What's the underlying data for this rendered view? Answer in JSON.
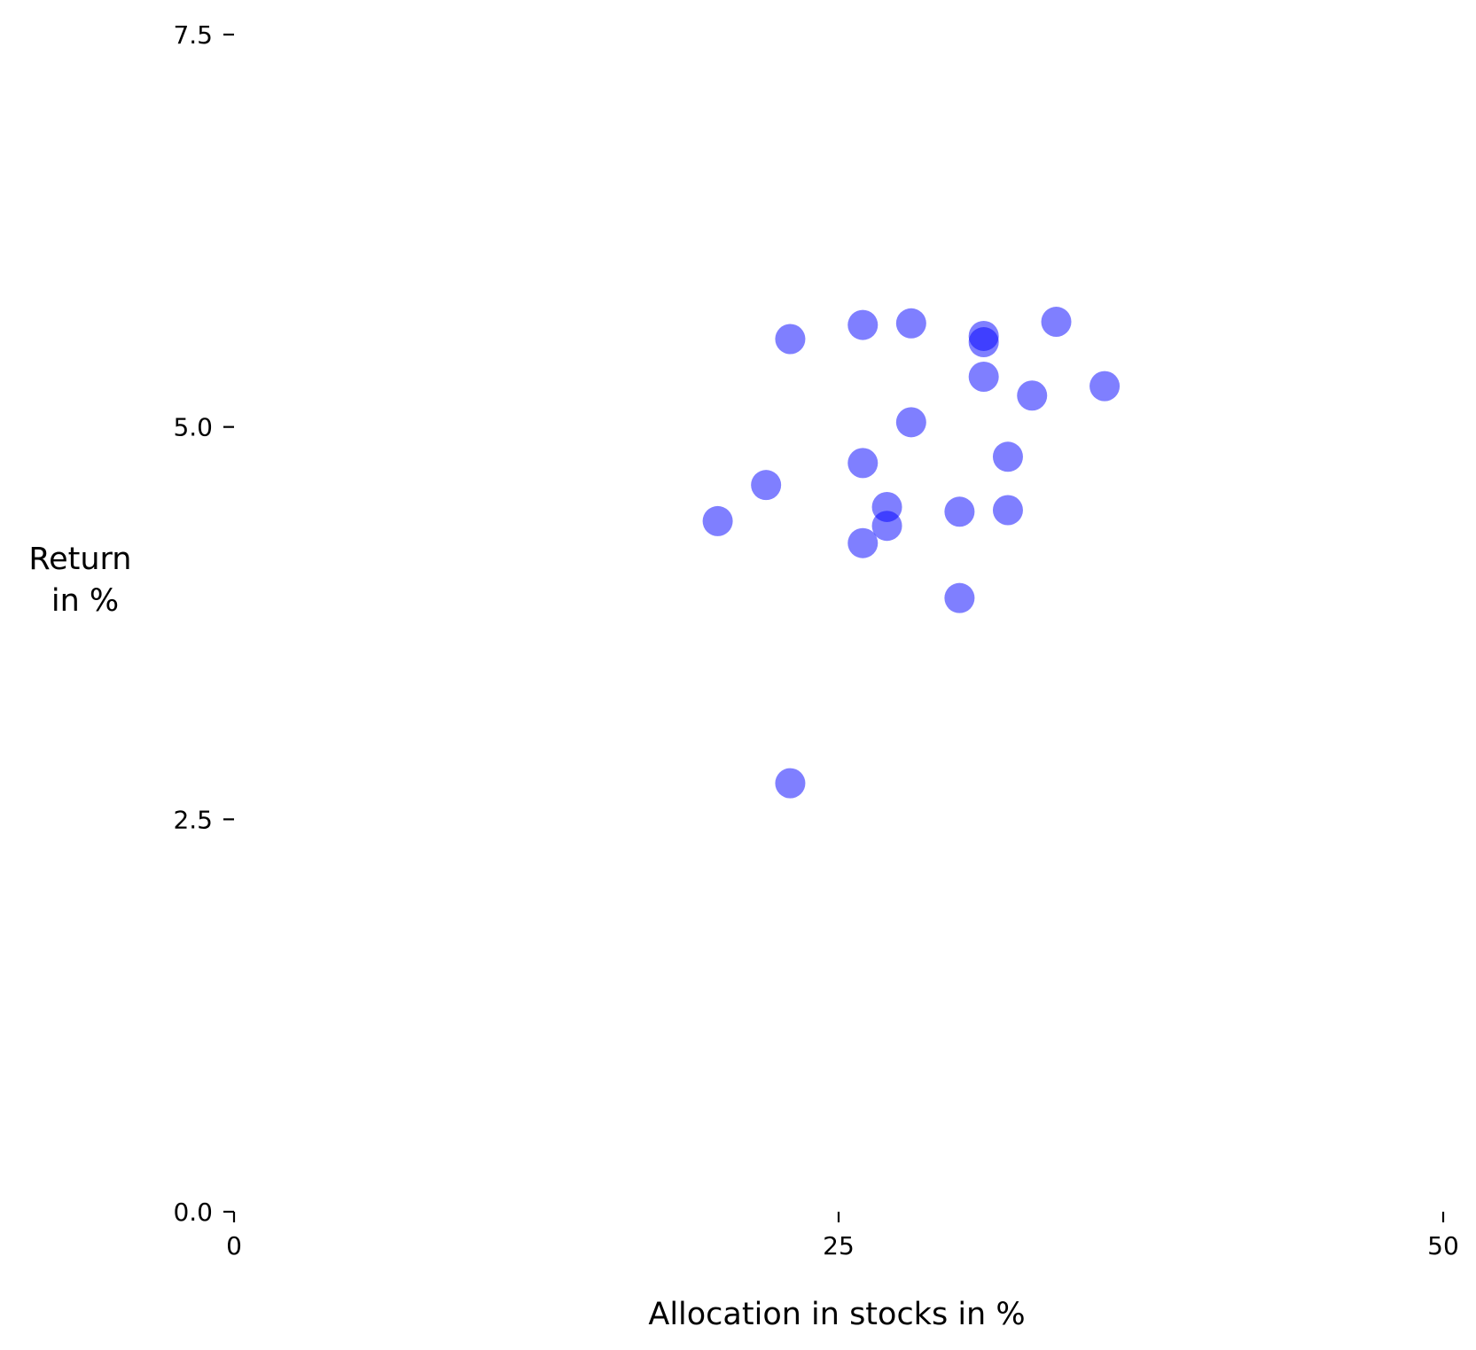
{
  "chart_data": {
    "type": "scatter",
    "title": "",
    "xlabel": "Allocation in stocks in %",
    "ylabel_lines": [
      "Return",
      "in %"
    ],
    "xlim": [
      0,
      50
    ],
    "ylim": [
      0,
      7.5
    ],
    "xticks": [
      0,
      25,
      50
    ],
    "xtick_labels": [
      "0",
      "25",
      "50"
    ],
    "yticks": [
      0,
      2.5,
      5.0,
      7.5
    ],
    "ytick_labels": [
      "0.0",
      "2.5",
      "5.0",
      "7.5"
    ],
    "grid": false,
    "legend": false,
    "point_color": "#0000ff",
    "point_opacity": 0.5,
    "series": [
      {
        "points": [
          {
            "x": 20,
            "y": 4.4
          },
          {
            "x": 22,
            "y": 4.63
          },
          {
            "x": 23,
            "y": 2.73
          },
          {
            "x": 23,
            "y": 5.56
          },
          {
            "x": 26,
            "y": 4.26
          },
          {
            "x": 26,
            "y": 4.77
          },
          {
            "x": 26,
            "y": 5.65
          },
          {
            "x": 27,
            "y": 4.37
          },
          {
            "x": 27,
            "y": 4.49
          },
          {
            "x": 28,
            "y": 5.03
          },
          {
            "x": 28,
            "y": 5.66
          },
          {
            "x": 30,
            "y": 3.91
          },
          {
            "x": 30,
            "y": 4.46
          },
          {
            "x": 31,
            "y": 5.32
          },
          {
            "x": 31,
            "y": 5.54
          },
          {
            "x": 31,
            "y": 5.58
          },
          {
            "x": 32,
            "y": 4.47
          },
          {
            "x": 32,
            "y": 4.81
          },
          {
            "x": 33,
            "y": 5.2
          },
          {
            "x": 34,
            "y": 5.67
          },
          {
            "x": 36,
            "y": 5.26
          }
        ]
      }
    ]
  }
}
